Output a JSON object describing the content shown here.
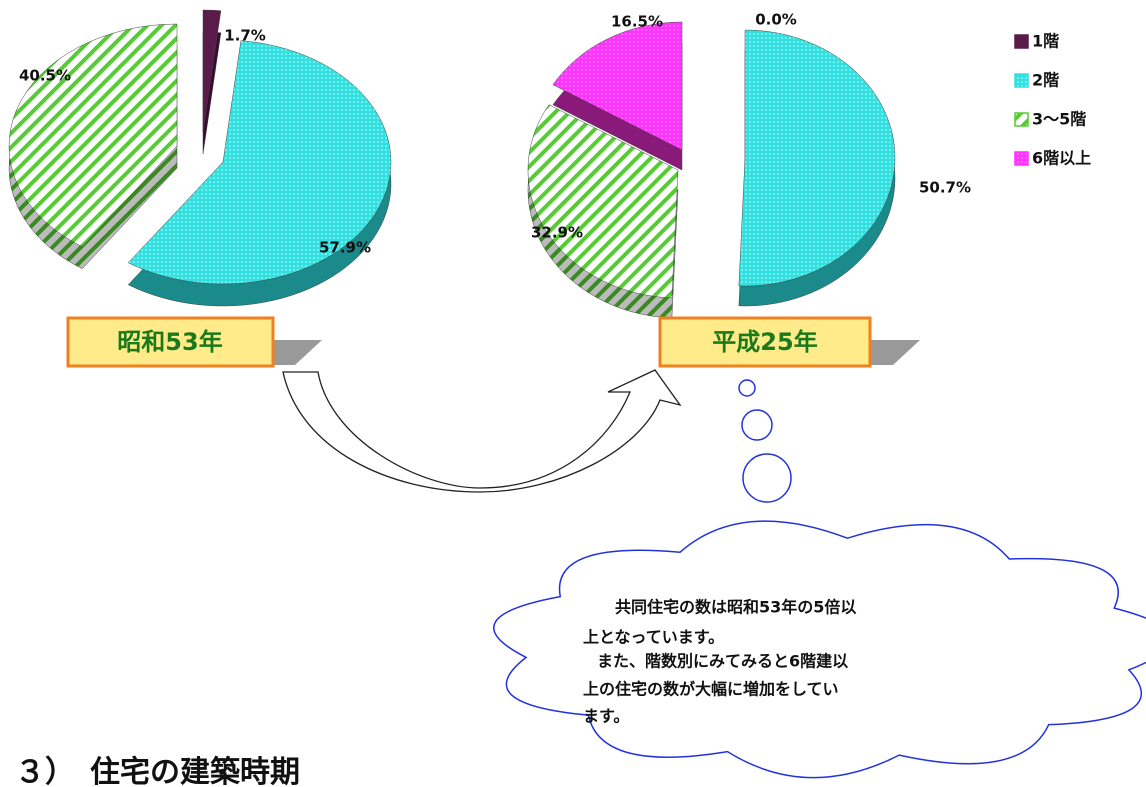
{
  "chart_data": [
    {
      "type": "pie",
      "title": "昭和53年",
      "values": [
        1.7,
        57.9,
        40.5
      ],
      "value_labels": [
        "1.7%",
        "57.9%",
        "40.5%"
      ]
    },
    {
      "type": "pie",
      "title": "平成25年",
      "values": [
        0.0,
        50.7,
        32.9,
        16.5
      ],
      "value_labels": [
        "0.0%",
        "50.7%",
        "32.9%",
        "16.5%"
      ]
    }
  ],
  "legend": {
    "categories": [
      "1階",
      "2階",
      "3～5階",
      "6階以上"
    ],
    "colors": [
      "#5a1a4a",
      "#33e0e0",
      "#55cc33",
      "#ff33ff"
    ]
  },
  "callout": {
    "lines": [
      "共同住宅の数は昭和53年の5倍以",
      "上となっています。",
      "また、階数別にみてみると6階建以",
      "上の住宅の数が大幅に増加をしてい",
      "ます。"
    ]
  },
  "heading": "３）　住宅の建築時期"
}
